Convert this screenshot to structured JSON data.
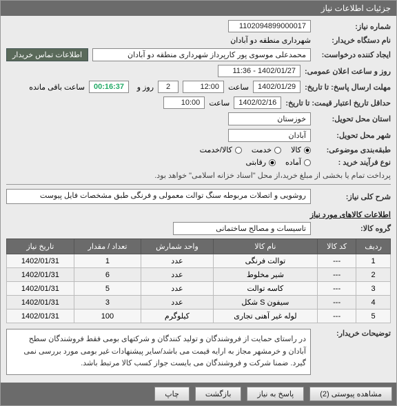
{
  "header": {
    "title": "جزئیات اطلاعات نیاز"
  },
  "labels": {
    "req_no": "شماره نیاز:",
    "buyer_org": "نام دستگاه خریدار:",
    "req_creator": "ایجاد کننده درخواست:",
    "reply_deadline": "مهلت ارسال پاسخ: تا تاریخ:",
    "valid_until": "حداقل تاریخ اعتبار قیمت: تا تاریخ:",
    "delivery_province": "استان محل تحویل:",
    "delivery_city": "شهر محل تحویل:",
    "subject_class": "طبقه‌بندی موضوعی:",
    "buy_type": "نوع فرآیند خرید :",
    "summary": "شرح کلی نیاز:",
    "announce": "روز و ساعت اعلان عمومی:",
    "contact": "اطلاعات تماس خریدار",
    "hour": "ساعت",
    "day": "روز و",
    "remaining": "ساعت باقی مانده",
    "opt_goods": "کالا",
    "opt_service": "خدمت",
    "opt_both": "کالا/خدمت",
    "opt_ready": "آماده",
    "opt_tender": "رقابتی",
    "pay_note": "پرداخت تمام یا بخشی از مبلغ خرید،از محل \"اسناد خزانه اسلامی\" خواهد بود.",
    "items_section": "اطلاعات کالاهای مورد نیاز",
    "goods_group": "گروه کالا:",
    "buyer_notes": "توضیحات خریدار:"
  },
  "values": {
    "req_no": "1102094899000017",
    "buyer_org": "شهرداری منطقه دو آبادان",
    "req_creator": "محمدعلی موسوی پور کارپرداز شهرداری منطقه دو آبادان",
    "announce": "1402/01/27 - 11:36",
    "reply_date": "1402/01/29",
    "reply_time": "12:00",
    "reply_days": "2",
    "countdown": "00:16:37",
    "valid_date": "1402/02/16",
    "valid_time": "10:00",
    "province": "خوزستان",
    "city": "آبادان",
    "summary": "روشویی و اتصلات مربوطه   سنگ توالت معمولی و فرنگی طبق مشخصات فایل پیوست",
    "goods_group": "تاسیسات و مصالح ساختمانی",
    "buyer_notes": "در راستای حمایت از فروشندگان و تولید کنندگان و شرکتهای بومی فقط فروشندگان سطح آبادان و خرمشهر مجاز به ارایه قیمت می باشد/سایر پیشنهادات غیر بومی مورد بررسی نمی گیرد. ضمنا شرکت و فروشندگان می بایست جواز کسب کالا مرتبط باشد."
  },
  "table": {
    "headers": [
      "ردیف",
      "کد کالا",
      "نام کالا",
      "واحد شمارش",
      "تعداد / مقدار",
      "تاریخ نیاز"
    ],
    "rows": [
      [
        "1",
        "---",
        "توالت فرنگی",
        "عدد",
        "1",
        "1402/01/31"
      ],
      [
        "2",
        "---",
        "شیر مخلوط",
        "عدد",
        "6",
        "1402/01/31"
      ],
      [
        "3",
        "---",
        "کاسه توالت",
        "عدد",
        "5",
        "1402/01/31"
      ],
      [
        "4",
        "---",
        "سیفون S شکل",
        "عدد",
        "3",
        "1402/01/31"
      ],
      [
        "5",
        "---",
        "لوله غیر آهنی تجاری",
        "کیلوگرم",
        "100",
        "1402/01/31"
      ]
    ]
  },
  "footer": {
    "attach": "مشاهده پیوستی (2)",
    "reply": "پاسخ به نیاز",
    "back": "بازگشت",
    "print": "چاپ"
  }
}
